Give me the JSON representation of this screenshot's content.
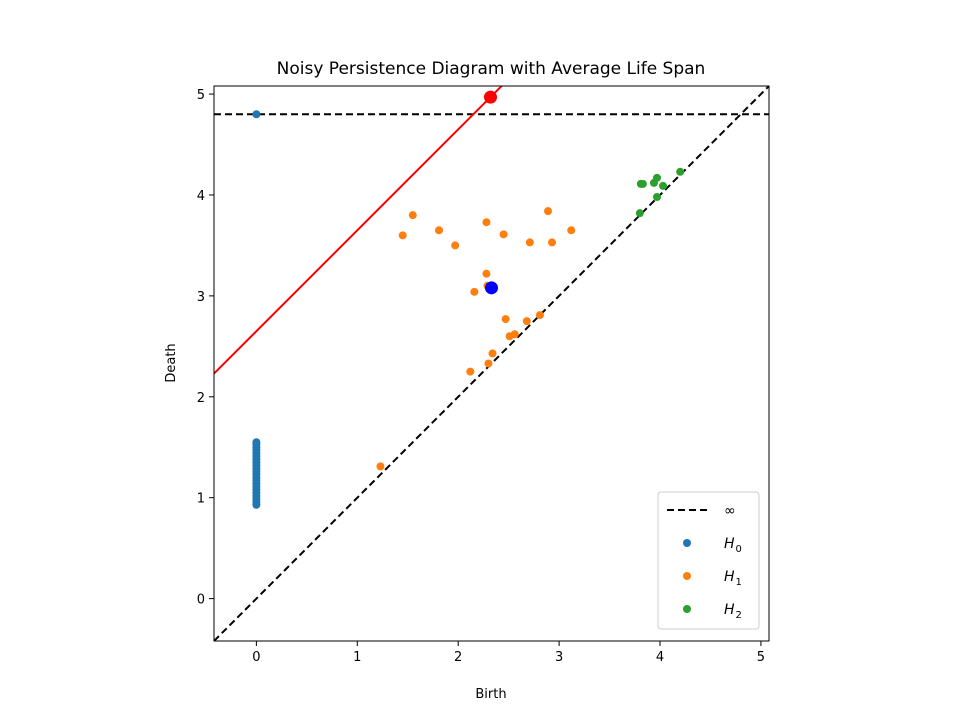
{
  "chart_data": {
    "type": "scatter",
    "title": "Noisy Persistence Diagram with Average Life Span",
    "xlabel": "Birth",
    "ylabel": "Death",
    "xlim": [
      -0.42,
      5.08
    ],
    "ylim": [
      -0.42,
      5.08
    ],
    "x_ticks": [
      0,
      1,
      2,
      3,
      4,
      5
    ],
    "y_ticks": [
      0,
      1,
      2,
      3,
      4,
      5
    ],
    "infinity_level": 4.8,
    "legend": {
      "placement": "lower-right",
      "entries": [
        {
          "label": "∞",
          "base": "",
          "sub": "",
          "kind": "dashed-line",
          "color": "#000000"
        },
        {
          "label": "H0",
          "base": "H",
          "sub": "0",
          "kind": "dot",
          "color": "#1f77b4"
        },
        {
          "label": "H1",
          "base": "H",
          "sub": "1",
          "kind": "dot",
          "color": "#ff7f0e"
        },
        {
          "label": "H2",
          "base": "H",
          "sub": "2",
          "kind": "dot",
          "color": "#2ca02c"
        }
      ]
    },
    "series": [
      {
        "name": "H0",
        "color": "#1f77b4",
        "points": [
          [
            0,
            4.8
          ],
          [
            0,
            0.93
          ],
          [
            0,
            0.96
          ],
          [
            0,
            0.99
          ],
          [
            0,
            1.02
          ],
          [
            0,
            1.05
          ],
          [
            0,
            1.08
          ],
          [
            0,
            1.11
          ],
          [
            0,
            1.14
          ],
          [
            0,
            1.17
          ],
          [
            0,
            1.2
          ],
          [
            0,
            1.23
          ],
          [
            0,
            1.26
          ],
          [
            0,
            1.29
          ],
          [
            0,
            1.32
          ],
          [
            0,
            1.35
          ],
          [
            0,
            1.38
          ],
          [
            0,
            1.41
          ],
          [
            0,
            1.44
          ],
          [
            0,
            1.47
          ],
          [
            0,
            1.5
          ],
          [
            0,
            1.53
          ],
          [
            0,
            1.55
          ]
        ]
      },
      {
        "name": "H1",
        "color": "#ff7f0e",
        "points": [
          [
            1.23,
            1.31
          ],
          [
            1.45,
            3.6
          ],
          [
            1.55,
            3.8
          ],
          [
            1.81,
            3.65
          ],
          [
            1.97,
            3.5
          ],
          [
            2.12,
            2.25
          ],
          [
            2.16,
            3.04
          ],
          [
            2.28,
            3.73
          ],
          [
            2.28,
            3.22
          ],
          [
            2.29,
            3.1
          ],
          [
            2.3,
            2.33
          ],
          [
            2.34,
            2.43
          ],
          [
            2.45,
            3.61
          ],
          [
            2.47,
            2.77
          ],
          [
            2.51,
            2.6
          ],
          [
            2.56,
            2.62
          ],
          [
            2.68,
            2.75
          ],
          [
            2.71,
            3.53
          ],
          [
            2.81,
            2.81
          ],
          [
            2.89,
            3.84
          ],
          [
            2.93,
            3.53
          ],
          [
            3.12,
            3.65
          ]
        ]
      },
      {
        "name": "H2",
        "color": "#2ca02c",
        "points": [
          [
            3.8,
            3.82
          ],
          [
            3.81,
            4.11
          ],
          [
            3.83,
            4.11
          ],
          [
            3.94,
            4.12
          ],
          [
            3.97,
            3.98
          ],
          [
            3.97,
            4.17
          ],
          [
            4.03,
            4.09
          ],
          [
            4.2,
            4.23
          ]
        ]
      }
    ],
    "average_line": {
      "color": "#ff0000",
      "intercept": 2.65,
      "slope": 1
    },
    "markers": [
      {
        "name": "average-point",
        "x": 2.32,
        "y": 4.97,
        "color": "#ff0000"
      },
      {
        "name": "mean-point",
        "x": 2.33,
        "y": 3.08,
        "color": "#0000ff"
      }
    ]
  }
}
